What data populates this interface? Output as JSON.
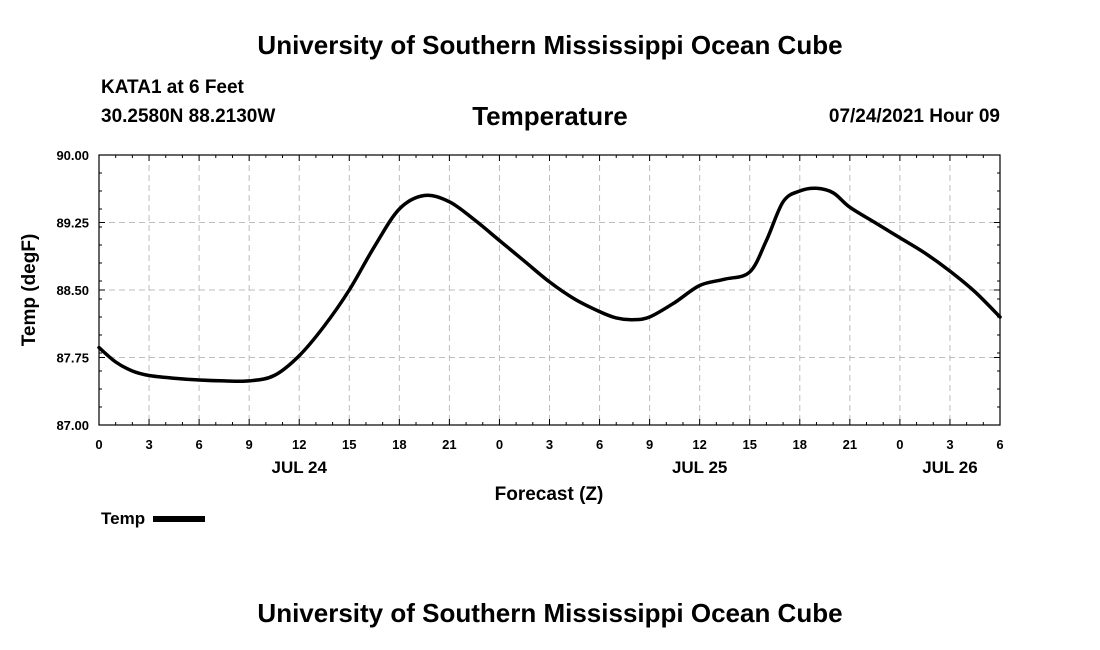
{
  "main_title": "University of Southern Mississippi Ocean Cube",
  "footer_title": "University of Southern Mississippi Ocean Cube",
  "station": "KATA1 at 6 Feet",
  "coordinates": "30.2580N  88.2130W",
  "datetime": "07/24/2021 Hour 09",
  "legend_label": "Temp",
  "line_color": "#000000",
  "chart_data": {
    "type": "line",
    "title": "Temperature",
    "xlabel": "Forecast (Z)",
    "ylabel": "Temp (degF)",
    "xlim": [
      0,
      54
    ],
    "ylim": [
      87.0,
      90.0
    ],
    "yticks": [
      87.0,
      87.75,
      88.5,
      89.25,
      90.0
    ],
    "ytick_labels": [
      "87.00",
      "87.75",
      "88.50",
      "89.25",
      "90.00"
    ],
    "xticks": [
      0,
      3,
      6,
      9,
      12,
      15,
      18,
      21,
      24,
      27,
      30,
      33,
      36,
      39,
      42,
      45,
      48,
      51,
      54
    ],
    "xtick_labels": [
      "0",
      "3",
      "6",
      "9",
      "12",
      "15",
      "18",
      "21",
      "0",
      "3",
      "6",
      "9",
      "12",
      "15",
      "18",
      "21",
      "0",
      "3",
      "6"
    ],
    "date_labels": [
      {
        "x": 12,
        "label": "JUL 24"
      },
      {
        "x": 36,
        "label": "JUL 25"
      },
      {
        "x": 51,
        "label": "JUL 26"
      }
    ],
    "grid": true,
    "series": [
      {
        "name": "Temp",
        "x": [
          0,
          1,
          2,
          3,
          4.5,
          6,
          7.5,
          9,
          10.5,
          12,
          13.5,
          15,
          16.5,
          18,
          19.5,
          21,
          22.5,
          24,
          25.5,
          27,
          28.5,
          30,
          31,
          32,
          33,
          34.5,
          36,
          37.5,
          39,
          40,
          41,
          42,
          43,
          44,
          45,
          46.5,
          48,
          49.5,
          51,
          52.5,
          54
        ],
        "values": [
          87.86,
          87.7,
          87.6,
          87.55,
          87.52,
          87.5,
          87.49,
          87.49,
          87.55,
          87.77,
          88.1,
          88.5,
          88.98,
          89.4,
          89.55,
          89.48,
          89.28,
          89.05,
          88.82,
          88.59,
          88.4,
          88.26,
          88.19,
          88.17,
          88.2,
          88.36,
          88.55,
          88.62,
          88.7,
          89.05,
          89.48,
          89.6,
          89.63,
          89.58,
          89.42,
          89.25,
          89.08,
          88.91,
          88.71,
          88.48,
          88.2
        ]
      }
    ]
  }
}
